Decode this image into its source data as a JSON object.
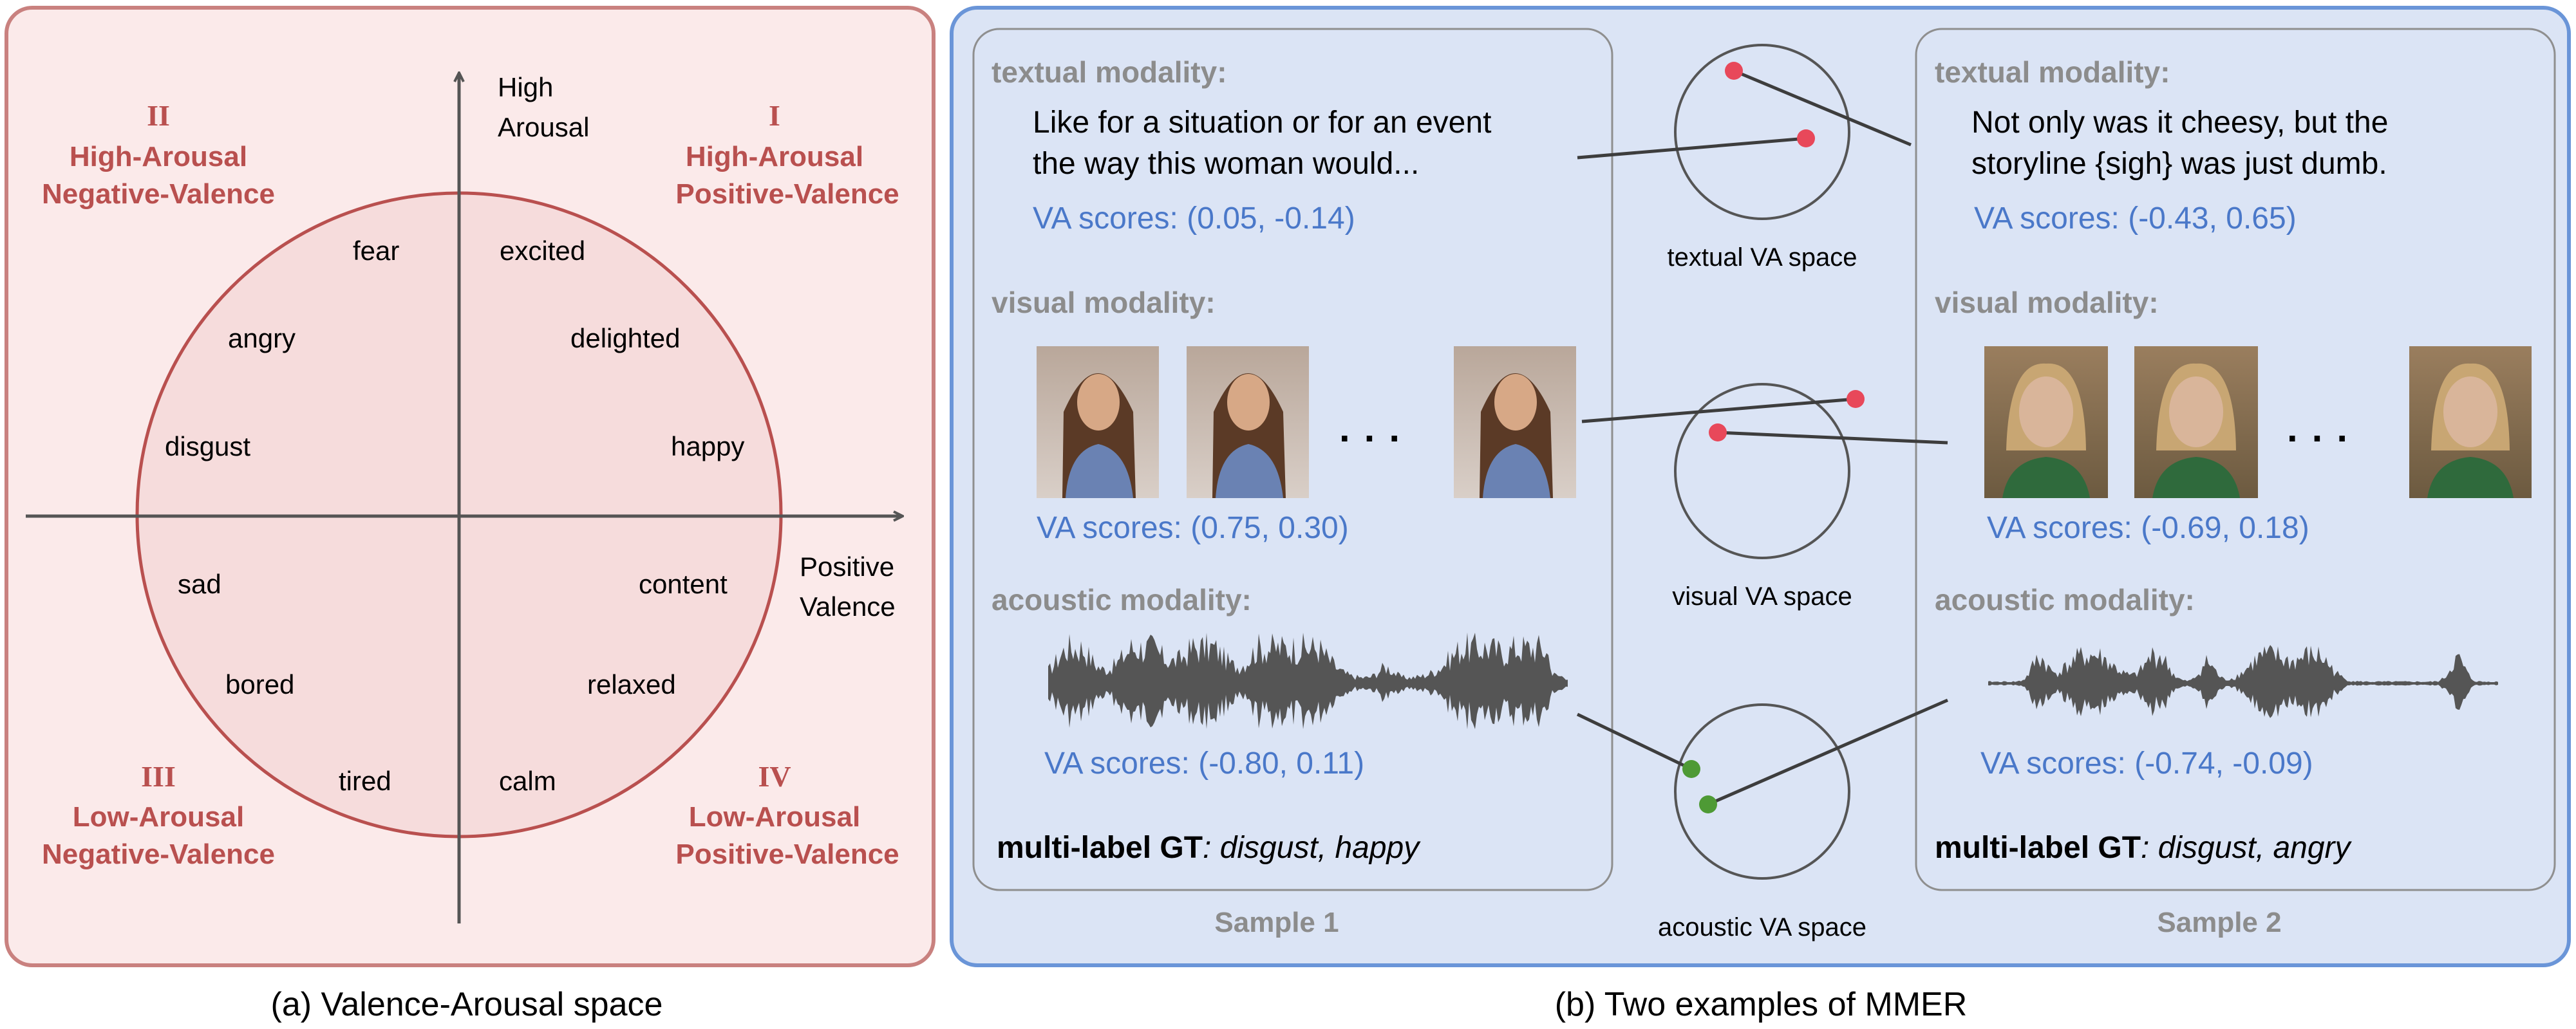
{
  "panel_a": {
    "caption": "(a) Valence-Arousal space",
    "axis_y_label": [
      "High",
      "Arousal"
    ],
    "axis_x_label": [
      "Positive",
      "Valence"
    ],
    "quadrants": [
      {
        "numeral": "I",
        "lines": [
          "High-Arousal",
          "Positive-Valence"
        ]
      },
      {
        "numeral": "II",
        "lines": [
          "High-Arousal",
          "Negative-Valence"
        ]
      },
      {
        "numeral": "III",
        "lines": [
          "Low-Arousal",
          "Negative-Valence"
        ]
      },
      {
        "numeral": "IV",
        "lines": [
          "Low-Arousal",
          "Positive-Valence"
        ]
      }
    ],
    "emotions": [
      "fear",
      "excited",
      "angry",
      "delighted",
      "disgust",
      "happy",
      "sad",
      "content",
      "bored",
      "relaxed",
      "tired",
      "calm"
    ]
  },
  "panel_b": {
    "caption": "(b) Two examples of MMER",
    "samples": [
      {
        "label": "Sample 1",
        "textual_title": "textual modality:",
        "text_lines": [
          "Like for a situation or for an event",
          "the way this woman would..."
        ],
        "textual_va": "VA scores: (0.05, -0.14)",
        "visual_title": "visual modality:",
        "visual_va": "VA scores: (0.75, 0.30)",
        "acoustic_title": "acoustic modality:",
        "acoustic_va": "VA scores: (-0.80, 0.11)",
        "gt_label": "multi-label GT",
        "gt_value": ": disgust, happy"
      },
      {
        "label": "Sample 2",
        "textual_title": "textual modality:",
        "text_lines": [
          "Not only was it cheesy, but the",
          "storyline {sigh} was just dumb."
        ],
        "textual_va": "VA scores: (-0.43, 0.65)",
        "visual_title": "visual modality:",
        "visual_va": "VA scores: (-0.69, 0.18)",
        "acoustic_title": "acoustic modality:",
        "acoustic_va": "VA scores: (-0.74, -0.09)",
        "gt_label": "multi-label GT",
        "gt_value": ": disgust, angry"
      }
    ],
    "spaces": [
      "textual VA space",
      "visual VA space",
      "acoustic VA space"
    ],
    "ellipsis": "...",
    "colors": {
      "red_point": "#e8485a",
      "green_point": "#4e9a35",
      "panel_a_bg": "#fbeaea",
      "panel_b_bg": "#dbe4f5"
    }
  }
}
